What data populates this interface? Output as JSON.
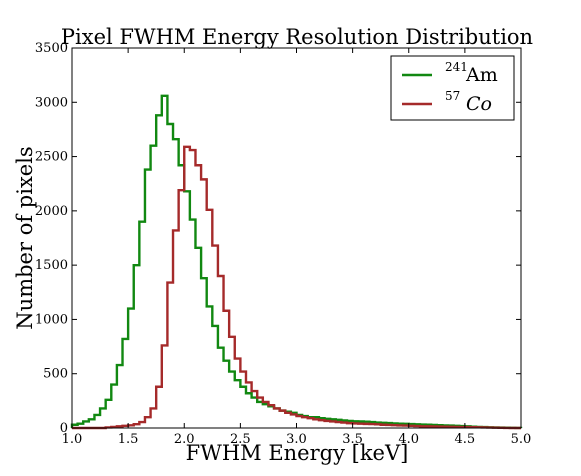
{
  "chart_data": {
    "type": "line",
    "step": true,
    "title": "Pixel FWHM Energy Resolution Distribution",
    "xlabel": "FWHM Energy [keV]",
    "ylabel": "Number of pixels",
    "xlim": [
      1.0,
      5.0
    ],
    "ylim": [
      0,
      3500
    ],
    "xticks": [
      "1.0",
      "1.5",
      "2.0",
      "2.5",
      "3.0",
      "3.5",
      "4.0",
      "4.5",
      "5.0"
    ],
    "yticks": [
      "0",
      "500",
      "1000",
      "1500",
      "2000",
      "2500",
      "3000",
      "3500"
    ],
    "grid": false,
    "legend_position": "top-right",
    "colors": {
      "am241": "#118811",
      "co57": "#a52a2a"
    },
    "bin_edges": [
      1.0,
      1.05,
      1.1,
      1.15,
      1.2,
      1.25,
      1.3,
      1.35,
      1.4,
      1.45,
      1.5,
      1.55,
      1.6,
      1.65,
      1.7,
      1.75,
      1.8,
      1.85,
      1.9,
      1.95,
      2.0,
      2.05,
      2.1,
      2.15,
      2.2,
      2.25,
      2.3,
      2.35,
      2.4,
      2.45,
      2.5,
      2.55,
      2.6,
      2.65,
      2.7,
      2.75,
      2.8,
      2.85,
      2.9,
      2.95,
      3.0,
      3.05,
      3.1,
      3.15,
      3.2,
      3.25,
      3.3,
      3.35,
      3.4,
      3.45,
      3.5,
      3.55,
      3.6,
      3.65,
      3.7,
      3.75,
      3.8,
      3.85,
      3.9,
      3.95,
      4.0,
      4.05,
      4.1,
      4.15,
      4.2,
      4.25,
      4.3,
      4.35,
      4.4,
      4.45,
      4.5,
      4.55,
      4.6,
      4.65,
      4.7,
      4.75,
      4.8,
      4.85,
      4.9,
      4.95,
      5.0
    ],
    "series": [
      {
        "name_main": "Am",
        "name_sup": "241",
        "color_key": "am241",
        "values": [
          30,
          40,
          60,
          80,
          120,
          180,
          260,
          400,
          580,
          820,
          1100,
          1500,
          1900,
          2380,
          2600,
          2880,
          3060,
          2800,
          2660,
          2420,
          2180,
          1920,
          1660,
          1380,
          1120,
          940,
          740,
          620,
          520,
          440,
          380,
          320,
          280,
          240,
          220,
          200,
          180,
          160,
          150,
          140,
          120,
          110,
          100,
          100,
          90,
          85,
          80,
          75,
          70,
          65,
          62,
          60,
          58,
          55,
          50,
          48,
          45,
          42,
          40,
          38,
          36,
          34,
          32,
          30,
          28,
          26,
          24,
          22,
          20,
          18,
          15,
          12,
          10,
          8,
          6,
          5,
          4,
          3,
          2,
          1
        ]
      },
      {
        "name_main": "Co",
        "name_sup": "57",
        "color_key": "co57",
        "italic": true,
        "values": [
          0,
          0,
          0,
          0,
          0,
          0,
          5,
          10,
          15,
          20,
          25,
          35,
          55,
          100,
          180,
          380,
          760,
          1340,
          1820,
          2190,
          2590,
          2560,
          2420,
          2290,
          2010,
          1680,
          1400,
          1080,
          840,
          640,
          520,
          420,
          340,
          280,
          240,
          210,
          180,
          160,
          140,
          125,
          110,
          100,
          90,
          80,
          72,
          65,
          60,
          55,
          50,
          45,
          42,
          40,
          38,
          36,
          34,
          30,
          28,
          26,
          24,
          22,
          20,
          18,
          16,
          15,
          14,
          13,
          12,
          11,
          10,
          9,
          8,
          7,
          6,
          5,
          4,
          3,
          2,
          1,
          0,
          0
        ]
      }
    ]
  }
}
